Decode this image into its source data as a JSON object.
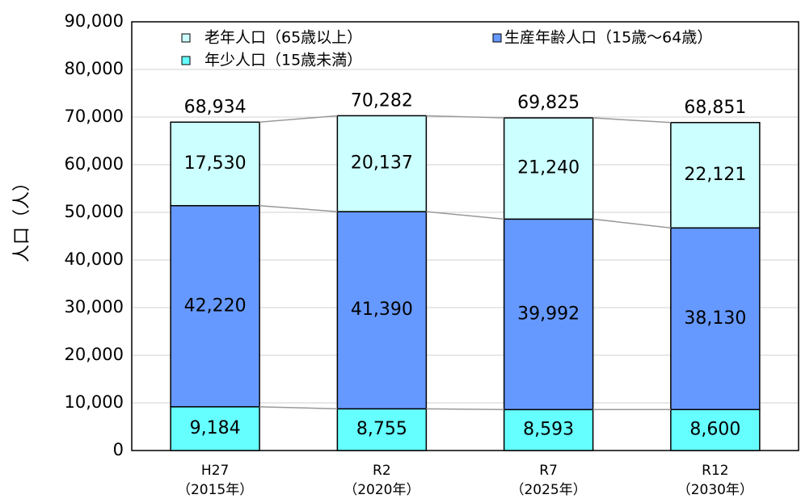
{
  "chart_data": {
    "type": "stacked_bar",
    "categories": [
      "H27\n（2015年）",
      "R2\n（2020年）",
      "R7\n（2025年）",
      "R12\n（2030年）"
    ],
    "y_label": "人口（人）",
    "series": [
      {
        "name": "年少人口（15歳未満）",
        "color": "#66ffff",
        "values": [
          9184,
          8755,
          8593,
          8600
        ],
        "value_labels": [
          "9,184",
          "8,755",
          "8,593",
          "8,600"
        ]
      },
      {
        "name": "生産年齢人口（15歳～64歳）",
        "color": "#6699ff",
        "values": [
          42220,
          41390,
          39992,
          38130
        ],
        "value_labels": [
          "42,220",
          "41,390",
          "39,992",
          "38,130"
        ]
      },
      {
        "name": "老年人口（65歳以上）",
        "color": "#ccffff",
        "values": [
          17530,
          20137,
          21240,
          22121
        ],
        "value_labels": [
          "17,530",
          "20,137",
          "21,240",
          "22,121"
        ]
      }
    ],
    "totals": [
      "68,934",
      "70,282",
      "69,825",
      "68,851"
    ],
    "ylim": [
      0,
      90000
    ],
    "yticks": [
      0,
      {
        "value": 10000,
        "label": "10,000"
      },
      {
        "value": 20000,
        "label": "20,000"
      },
      {
        "value": 30000,
        "label": "30,000"
      },
      {
        "value": 40000,
        "label": "40,000"
      },
      {
        "value": 50000,
        "label": "50,000"
      },
      {
        "value": 60000,
        "label": "60,000"
      },
      {
        "value": 70000,
        "label": "70,000"
      },
      {
        "value": 80000,
        "label": "80,000"
      },
      {
        "value": 90000,
        "label": "90,000"
      }
    ],
    "grid": true
  }
}
